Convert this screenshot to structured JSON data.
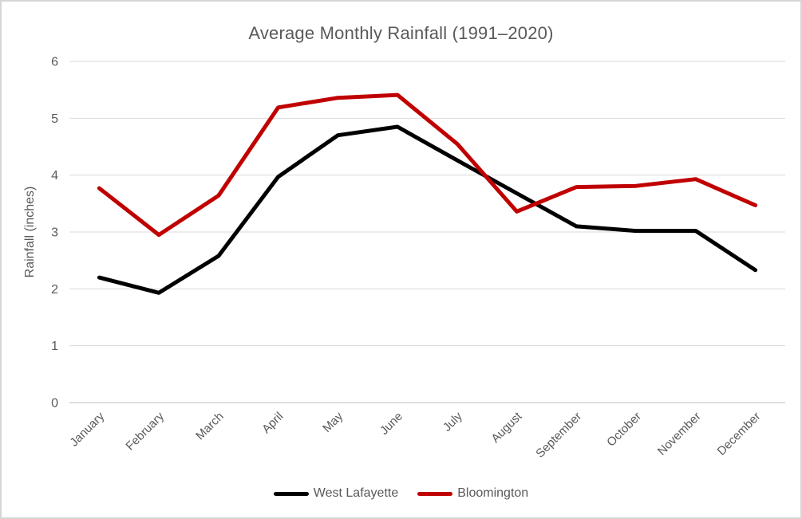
{
  "chart_data": {
    "type": "line",
    "title": "Average Monthly Rainfall (1991–2020)",
    "xlabel": "",
    "ylabel": "Rainfall (inches)",
    "categories": [
      "January",
      "February",
      "March",
      "April",
      "May",
      "June",
      "July",
      "August",
      "September",
      "October",
      "November",
      "December"
    ],
    "series": [
      {
        "name": "West Lafayette",
        "color": "#000000",
        "values": [
          2.2,
          1.93,
          2.58,
          3.97,
          4.7,
          4.85,
          4.26,
          3.68,
          3.1,
          3.02,
          3.02,
          2.33
        ]
      },
      {
        "name": "Bloomington",
        "color": "#c00000",
        "values": [
          3.77,
          2.95,
          3.64,
          5.19,
          5.36,
          5.41,
          4.55,
          3.36,
          3.79,
          3.81,
          3.93,
          3.47
        ]
      }
    ],
    "ylim": [
      0,
      6
    ],
    "yticks": [
      0,
      1,
      2,
      3,
      4,
      5,
      6
    ],
    "grid": true,
    "legend_position": "bottom",
    "gridline_color": "#d9d9d9",
    "axis_line_color": "#bfbfbf",
    "tick_label_color": "#595959",
    "title_color": "#595959",
    "x_labels_rotation_deg": -45
  }
}
